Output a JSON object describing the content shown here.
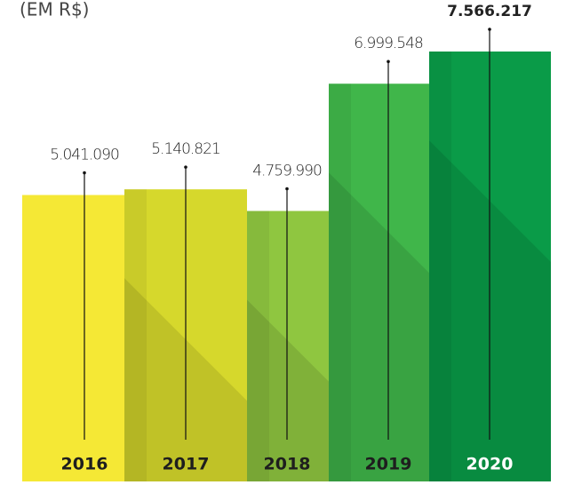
{
  "chart_data": {
    "type": "bar",
    "subtitle": "(EM R$)",
    "categories": [
      "2016",
      "2017",
      "2018",
      "2019",
      "2020"
    ],
    "values": [
      5041090,
      5140821,
      4759990,
      6999548,
      7566217
    ],
    "value_labels": [
      "5.041.090",
      "5.140.821",
      "4.759.990",
      "6.999.548",
      "7.566.217"
    ],
    "colors": [
      "#f5e835",
      "#d6d82c",
      "#8fc640",
      "#40b64a",
      "#0a9b48"
    ]
  }
}
